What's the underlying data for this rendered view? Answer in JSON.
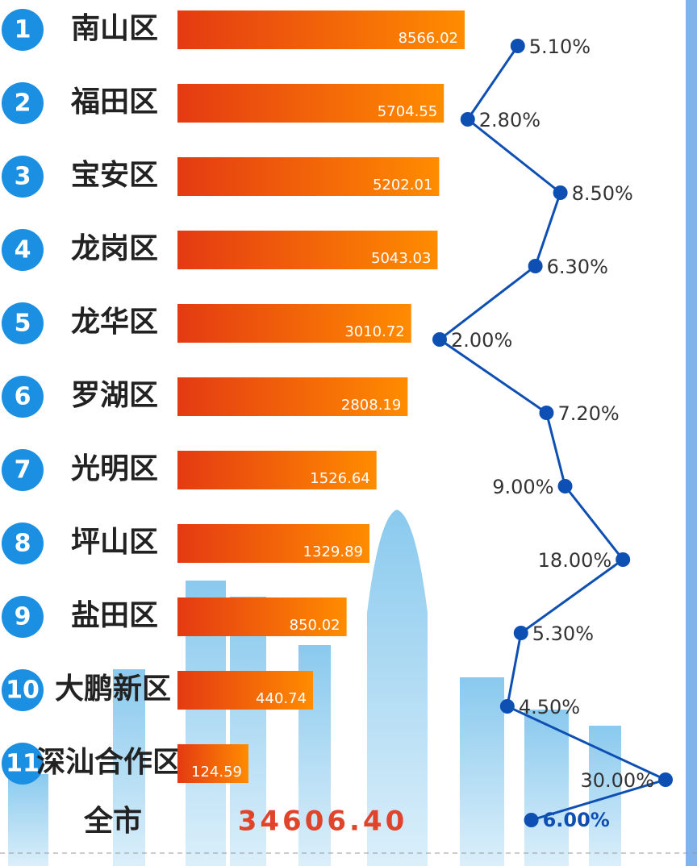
{
  "chart_data": {
    "type": "bar",
    "categories": [
      "南山区",
      "福田区",
      "宝安区",
      "龙岗区",
      "龙华区",
      "罗湖区",
      "光明区",
      "坪山区",
      "盐田区",
      "大鹏新区",
      "深汕合作区"
    ],
    "ranks": [
      1,
      2,
      3,
      4,
      5,
      6,
      7,
      8,
      9,
      10,
      11
    ],
    "values": [
      8566.02,
      5704.55,
      5202.01,
      5043.03,
      3010.72,
      2808.19,
      1526.64,
      1329.89,
      850.02,
      440.74,
      124.59
    ],
    "color": [
      "#e43a12",
      "#ff8c00"
    ],
    "growth_values": [
      5.1,
      2.8,
      8.5,
      6.3,
      2.0,
      7.2,
      9.0,
      18.0,
      5.3,
      4.5,
      30.0
    ],
    "growth_labels": [
      "5.10%",
      "2.80%",
      "8.50%",
      "6.30%",
      "2.00%",
      "7.20%",
      "9.00%",
      "18.00%",
      "5.30%",
      "4.50%",
      "30.00%"
    ],
    "growth_color": "#0d4fb3",
    "total": {
      "label": "全市",
      "value": 34606.4,
      "value_label": "34606.40",
      "growth": 6.0,
      "growth_label": "6.00%"
    }
  }
}
